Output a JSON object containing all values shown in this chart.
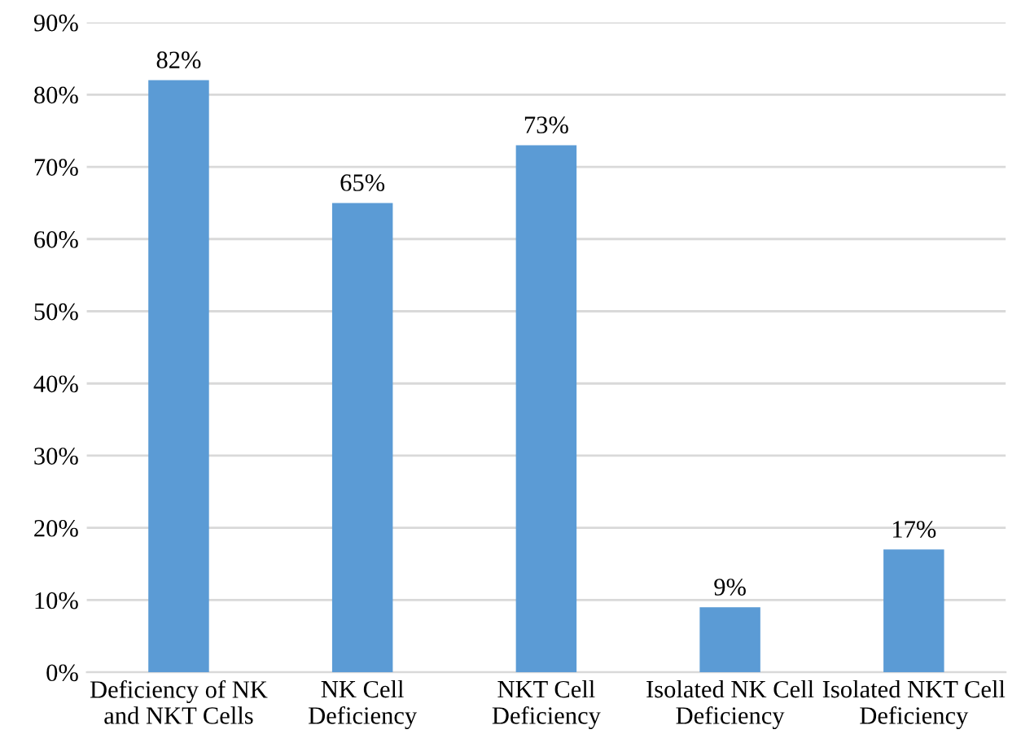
{
  "chart_data": {
    "type": "bar",
    "categories": [
      "Deficiency of NK\nand NKT Cells",
      "NK Cell\nDeficiency",
      "NKT Cell\nDeficiency",
      "Isolated NK Cell\nDeficiency",
      "Isolated NKT Cell\nDeficiency"
    ],
    "values": [
      82,
      65,
      73,
      9,
      17
    ],
    "value_labels": [
      "82%",
      "65%",
      "73%",
      "9%",
      "17%"
    ],
    "color": "#5b9bd5",
    "ylim": [
      0,
      90
    ],
    "yticks": [
      {
        "value": 0,
        "label": "0%"
      },
      {
        "value": 10,
        "label": "10%"
      },
      {
        "value": 20,
        "label": "20%"
      },
      {
        "value": 30,
        "label": "30%"
      },
      {
        "value": 40,
        "label": "40%"
      },
      {
        "value": 50,
        "label": "50%"
      },
      {
        "value": 60,
        "label": "60%"
      },
      {
        "value": 70,
        "label": "70%"
      },
      {
        "value": 80,
        "label": "80%"
      },
      {
        "value": 90,
        "label": "90%"
      }
    ],
    "grid": "y"
  }
}
